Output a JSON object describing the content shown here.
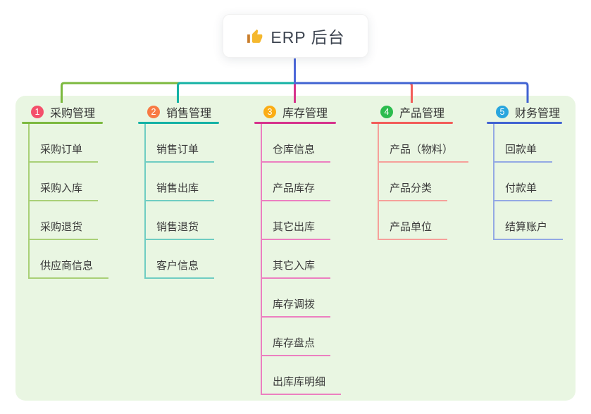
{
  "root": {
    "title": "ERP 后台",
    "icon": "thumbs-up-icon"
  },
  "branches": [
    {
      "badge": "1",
      "title": "采购管理",
      "badge_color": "#f4506b",
      "line_color": "#7cb93f",
      "light_color": "#a9d077",
      "items": [
        "采购订单",
        "采购入库",
        "采购退货",
        "供应商信息"
      ]
    },
    {
      "badge": "2",
      "title": "销售管理",
      "badge_color": "#f87a44",
      "line_color": "#14b2a5",
      "light_color": "#6fcdc2",
      "items": [
        "销售订单",
        "销售出库",
        "销售退货",
        "客户信息"
      ]
    },
    {
      "badge": "3",
      "title": "库存管理",
      "badge_color": "#fbad15",
      "line_color": "#d6338c",
      "light_color": "#ec7fc0",
      "items": [
        "仓库信息",
        "产品库存",
        "其它出库",
        "其它入库",
        "库存调拨",
        "库存盘点",
        "出库库明细"
      ]
    },
    {
      "badge": "4",
      "title": "产品管理",
      "badge_color": "#2cbc4e",
      "line_color": "#f25d59",
      "light_color": "#f6a09a",
      "items": [
        "产品（物料）",
        "产品分类",
        "产品单位"
      ]
    },
    {
      "badge": "5",
      "title": "财务管理",
      "badge_color": "#29a6de",
      "line_color": "#4163d2",
      "light_color": "#93a9e4",
      "items": [
        "回款单",
        "付款单",
        "结算账户"
      ]
    }
  ],
  "colors": {
    "panel_bg": "#e9f6e2",
    "root_line": "#4d68d9",
    "card_bg": "#ffffff",
    "title_text": "#333333",
    "item_text": "#3b3b3b",
    "root_text": "#3d4450",
    "thumb_yellow": "#f5b82e",
    "thumb_cuff": "#c97e2c"
  }
}
